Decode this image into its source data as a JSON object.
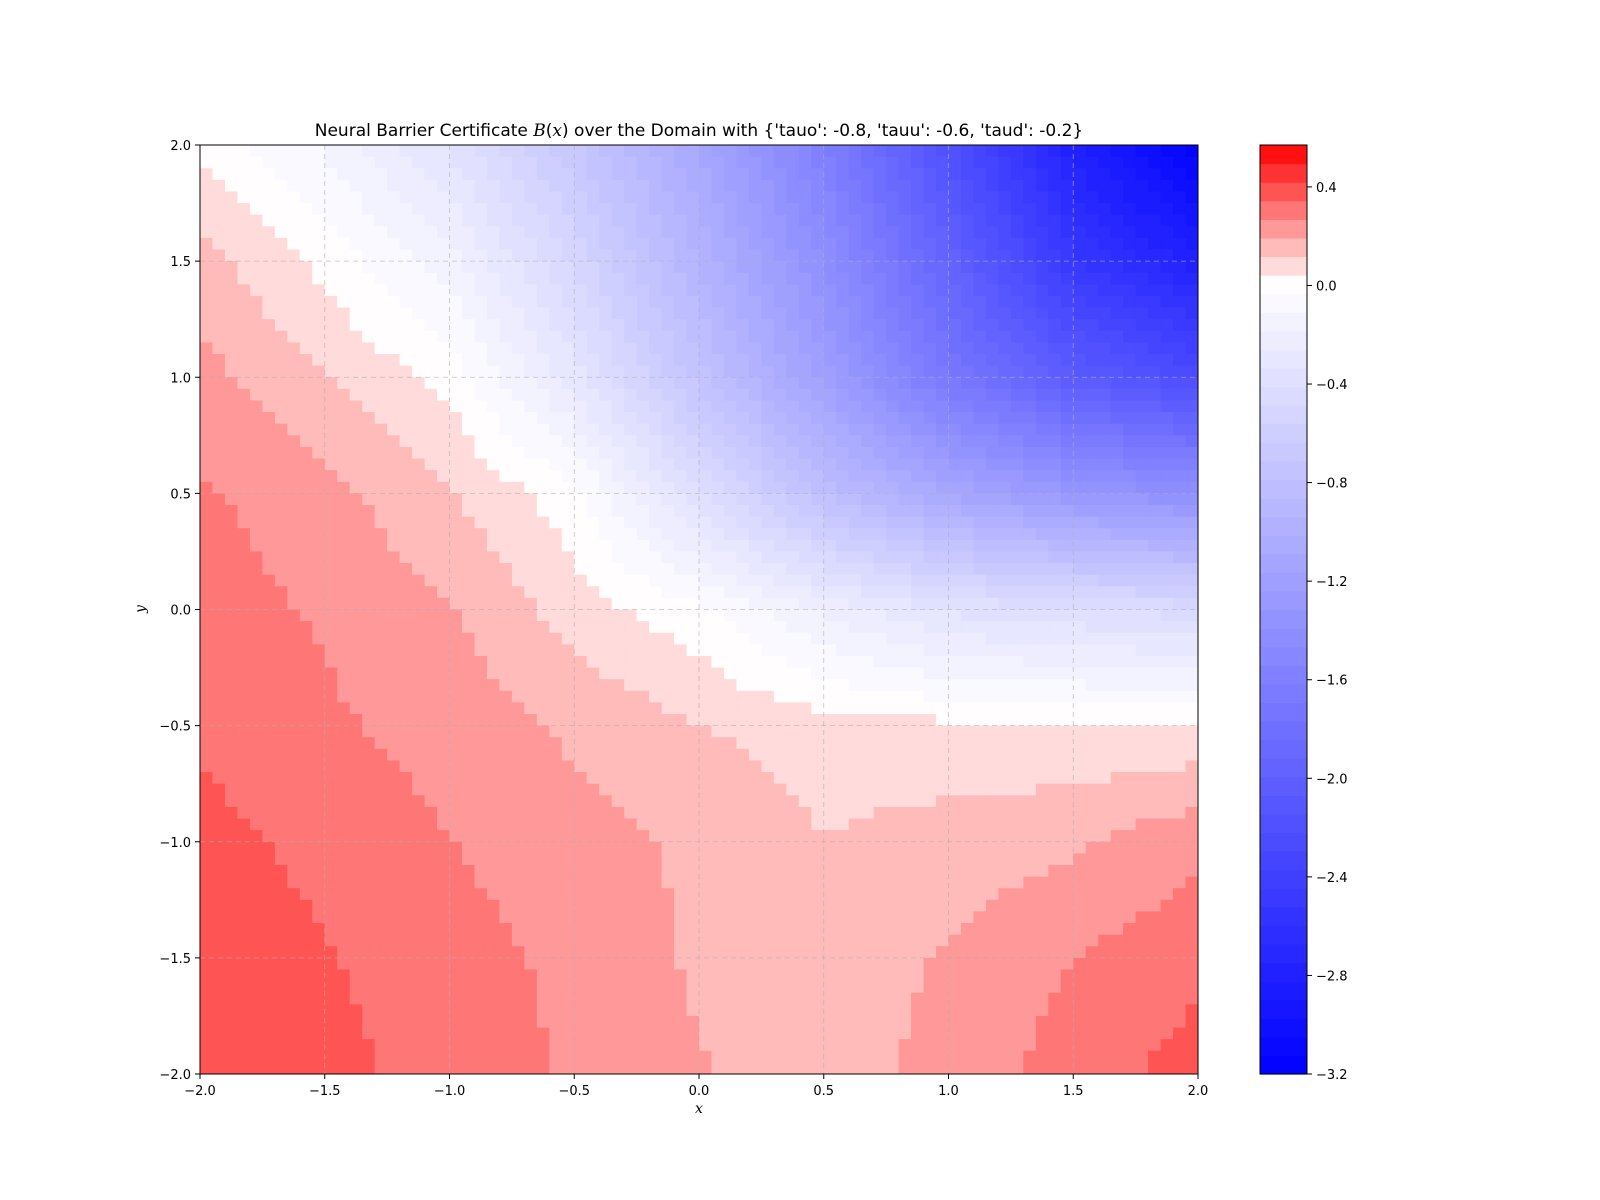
{
  "chart_data": {
    "type": "heatmap",
    "title": {
      "prefix": "Neural Barrier Certificate ",
      "math_fn": "B",
      "math_open": "(",
      "math_var": "x",
      "math_close": ")",
      "suffix": " over the Domain with {'tauo': -0.8, 'tauu': -0.6, 'taud': -0.2}"
    },
    "xlabel": "x",
    "ylabel": "y",
    "xlim": [
      -2.0,
      2.0
    ],
    "ylim": [
      -2.0,
      2.0
    ],
    "x_ticks": [
      -2.0,
      -1.5,
      -1.0,
      -0.5,
      0.0,
      0.5,
      1.0,
      1.5,
      2.0
    ],
    "y_ticks": [
      -2.0,
      -1.5,
      -1.0,
      -0.5,
      0.0,
      0.5,
      1.0,
      1.5,
      2.0
    ],
    "x_tick_labels": [
      "−2.0",
      "−1.5",
      "−1.0",
      "−0.5",
      "0.0",
      "0.5",
      "1.0",
      "1.5",
      "2.0"
    ],
    "y_tick_labels": [
      "−2.0",
      "−1.5",
      "−1.0",
      "−0.5",
      "0.0",
      "0.5",
      "1.0",
      "1.5",
      "2.0"
    ],
    "grid": true,
    "colormap": "bwr",
    "colorbar": {
      "vmin": -3.2,
      "vmax": 0.57,
      "ticks": [
        0.4,
        0.0,
        -0.4,
        -0.8,
        -1.2,
        -1.6,
        -2.0,
        -2.4,
        -2.8,
        -3.2
      ],
      "tick_labels": [
        "0.4",
        "0.0",
        "−0.4",
        "−0.8",
        "−1.2",
        "−1.6",
        "−2.0",
        "−2.4",
        "−2.8",
        "−3.2"
      ],
      "levels": 50
    },
    "grid_x": [
      -2.0,
      -1.5,
      -1.0,
      -0.5,
      0.0,
      0.5,
      1.0,
      1.5,
      2.0
    ],
    "grid_y": [
      2.0,
      1.5,
      1.0,
      0.5,
      0.0,
      -0.5,
      -1.0,
      -1.5,
      -2.0
    ],
    "z": [
      [
        0.02,
        -0.12,
        -0.35,
        -0.7,
        -1.1,
        -1.6,
        -2.2,
        -2.8,
        -3.2
      ],
      [
        0.15,
        0.02,
        -0.15,
        -0.5,
        -0.95,
        -1.4,
        -1.95,
        -2.5,
        -2.8
      ],
      [
        0.22,
        0.12,
        0.02,
        -0.3,
        -0.75,
        -1.2,
        -1.7,
        -2.05,
        -2.25
      ],
      [
        0.28,
        0.22,
        0.12,
        0.0,
        -0.4,
        -0.8,
        -1.1,
        -1.3,
        -1.4
      ],
      [
        0.3,
        0.26,
        0.2,
        0.08,
        -0.01,
        -0.2,
        -0.35,
        -0.4,
        -0.45
      ],
      [
        0.33,
        0.28,
        0.24,
        0.18,
        0.12,
        0.08,
        0.06,
        0.05,
        0.05
      ],
      [
        0.37,
        0.32,
        0.27,
        0.22,
        0.18,
        0.12,
        0.15,
        0.18,
        0.25
      ],
      [
        0.4,
        0.35,
        0.3,
        0.25,
        0.18,
        0.15,
        0.2,
        0.27,
        0.32
      ],
      [
        0.42,
        0.37,
        0.31,
        0.26,
        0.2,
        0.14,
        0.23,
        0.3,
        0.38
      ]
    ]
  }
}
